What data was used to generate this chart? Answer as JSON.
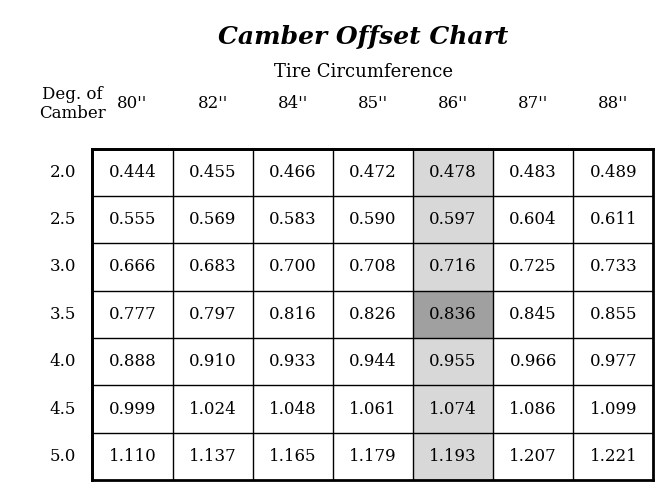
{
  "title": "Camber Offset Chart",
  "subtitle": "Tire Circumference",
  "col_header_label": "Deg. of\nCamber",
  "col_headers": [
    "80''",
    "82''",
    "84''",
    "85''",
    "86''",
    "87''",
    "88''"
  ],
  "row_headers": [
    "2.0",
    "2.5",
    "3.0",
    "3.5",
    "4.0",
    "4.5",
    "5.0"
  ],
  "table_data": [
    [
      "0.444",
      "0.455",
      "0.466",
      "0.472",
      "0.478",
      "0.483",
      "0.489"
    ],
    [
      "0.555",
      "0.569",
      "0.583",
      "0.590",
      "0.597",
      "0.604",
      "0.611"
    ],
    [
      "0.666",
      "0.683",
      "0.700",
      "0.708",
      "0.716",
      "0.725",
      "0.733"
    ],
    [
      "0.777",
      "0.797",
      "0.816",
      "0.826",
      "0.836",
      "0.845",
      "0.855"
    ],
    [
      "0.888",
      "0.910",
      "0.933",
      "0.944",
      "0.955",
      "0.966",
      "0.977"
    ],
    [
      "0.999",
      "1.024",
      "1.048",
      "1.061",
      "1.074",
      "1.086",
      "1.099"
    ],
    [
      "1.110",
      "1.137",
      "1.165",
      "1.179",
      "1.193",
      "1.207",
      "1.221"
    ]
  ],
  "highlight_col": 4,
  "highlight_cells": [
    [
      3,
      4
    ]
  ],
  "light_highlight_color": "#d8d8d8",
  "dark_highlight_color": "#a0a0a0",
  "bg_color": "#ffffff",
  "grid_color": "#000000",
  "title_fontsize": 18,
  "subtitle_fontsize": 13,
  "header_fontsize": 12,
  "cell_fontsize": 12
}
